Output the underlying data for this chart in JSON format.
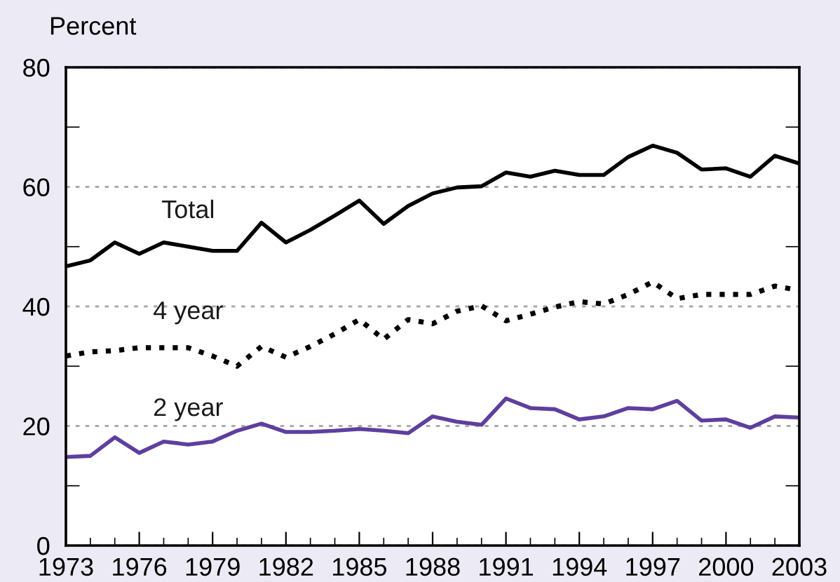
{
  "chart_data": {
    "type": "line",
    "ylabel": "Percent",
    "x": [
      1973,
      1974,
      1975,
      1976,
      1977,
      1978,
      1979,
      1980,
      1981,
      1982,
      1983,
      1984,
      1985,
      1986,
      1987,
      1988,
      1989,
      1990,
      1991,
      1992,
      1993,
      1994,
      1995,
      1996,
      1997,
      1998,
      1999,
      2000,
      2001,
      2002,
      2003
    ],
    "series": [
      {
        "name": "Total",
        "color": "#000000",
        "line_style": "solid",
        "values": [
          46.7,
          47.7,
          50.7,
          48.8,
          50.7,
          50,
          49.3,
          49.3,
          54,
          50.7,
          52.8,
          55.2,
          57.7,
          53.8,
          56.8,
          58.9,
          59.9,
          60.1,
          62.4,
          61.7,
          62.7,
          62,
          62,
          65,
          66.9,
          65.7,
          62.9,
          63.1,
          61.7,
          65.2,
          63.9
        ]
      },
      {
        "name": "4 year",
        "color": "#000000",
        "line_style": "dotted",
        "values": [
          31.7,
          32.4,
          32.6,
          33.1,
          33.1,
          33.1,
          31.7,
          30,
          33.3,
          31.5,
          33.3,
          35.4,
          37.8,
          34.5,
          37.8,
          37.1,
          39.2,
          40.1,
          37.6,
          38.7,
          39.9,
          40.8,
          40.4,
          42,
          44.1,
          41.3,
          42,
          42,
          42,
          43.4,
          42.7
        ]
      },
      {
        "name": "2 year",
        "color": "#5e3f9e",
        "line_style": "solid",
        "values": [
          14.8,
          15,
          18.1,
          15.5,
          17.4,
          16.9,
          17.4,
          19.2,
          20.4,
          19,
          19,
          19.2,
          19.5,
          19.2,
          18.8,
          21.6,
          20.7,
          20.2,
          24.6,
          23,
          22.8,
          21.1,
          21.6,
          23,
          22.8,
          24.2,
          20.9,
          21.1,
          19.7,
          21.6,
          21.4
        ]
      }
    ],
    "xlim": [
      1973,
      2003
    ],
    "xticks": [
      1973,
      {
        "value": 1974,
        "label": null
      },
      {
        "value": 1975,
        "label": null
      },
      1976,
      {
        "value": 1977,
        "label": null
      },
      {
        "value": 1978,
        "label": null
      },
      1979,
      {
        "value": 1980,
        "label": null
      },
      {
        "value": 1981,
        "label": null
      },
      1982,
      {
        "value": 1983,
        "label": null
      },
      {
        "value": 1984,
        "label": null
      },
      1985,
      {
        "value": 1986,
        "label": null
      },
      {
        "value": 1987,
        "label": null
      },
      1988,
      {
        "value": 1989,
        "label": null
      },
      {
        "value": 1990,
        "label": null
      },
      1991,
      {
        "value": 1992,
        "label": null
      },
      {
        "value": 1993,
        "label": null
      },
      1994,
      {
        "value": 1995,
        "label": null
      },
      {
        "value": 1996,
        "label": null
      },
      1997,
      {
        "value": 1998,
        "label": null
      },
      {
        "value": 1999,
        "label": null
      },
      2000,
      {
        "value": 2001,
        "label": null
      },
      {
        "value": 2002,
        "label": null
      },
      2003
    ],
    "ylim": [
      0,
      80
    ],
    "yticks": [
      0,
      {
        "value": 10,
        "label": null
      },
      20,
      {
        "value": 30,
        "label": null
      },
      40,
      {
        "value": 50,
        "label": null
      },
      60,
      {
        "value": 70,
        "label": null
      },
      80
    ],
    "grid": "y",
    "legend": false
  }
}
